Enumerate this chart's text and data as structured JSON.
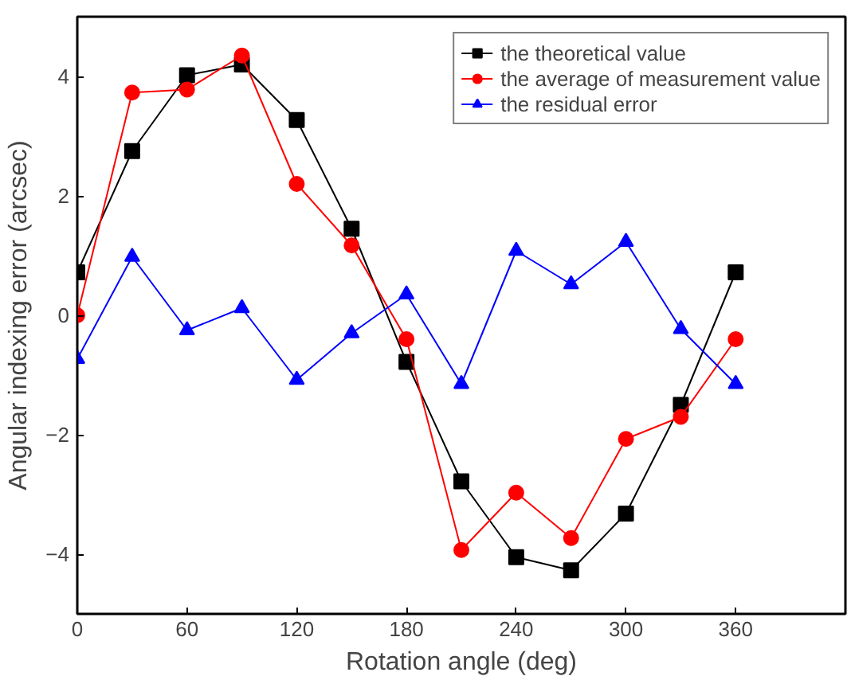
{
  "chart_data": {
    "type": "line",
    "xlabel": "Rotation angle (deg)",
    "ylabel": "Angular indexing error (arcsec)",
    "x": [
      0,
      30,
      60,
      90,
      120,
      150,
      180,
      210,
      240,
      270,
      300,
      330,
      360
    ],
    "series": [
      {
        "name": "the theoretical value",
        "color": "#000000",
        "marker": "square",
        "values": [
          0.72,
          2.75,
          4.02,
          4.2,
          3.27,
          1.45,
          -0.78,
          -2.78,
          -4.05,
          -4.27,
          -3.32,
          -1.5,
          0.72
        ]
      },
      {
        "name": "the average of measurement value",
        "color": "#ff0000",
        "marker": "circle",
        "values": [
          0,
          3.73,
          3.78,
          4.35,
          2.2,
          1.17,
          -0.4,
          -3.93,
          -2.97,
          -3.73,
          -2.07,
          -1.7,
          -0.4
        ]
      },
      {
        "name": "the residual error",
        "color": "#0000ff",
        "marker": "triangle",
        "values": [
          -0.73,
          0.98,
          -0.25,
          0.12,
          -1.08,
          -0.3,
          0.35,
          -1.15,
          1.08,
          0.52,
          1.23,
          -0.23,
          -1.15
        ]
      }
    ],
    "xlim": [
      0,
      420
    ],
    "xticks": [
      0,
      60,
      120,
      180,
      240,
      300,
      360
    ],
    "ylim": [
      -5,
      5
    ],
    "yticks": [
      -4,
      -2,
      0,
      2,
      4
    ],
    "grid": false,
    "legend": "top right",
    "line_style": "solid"
  }
}
